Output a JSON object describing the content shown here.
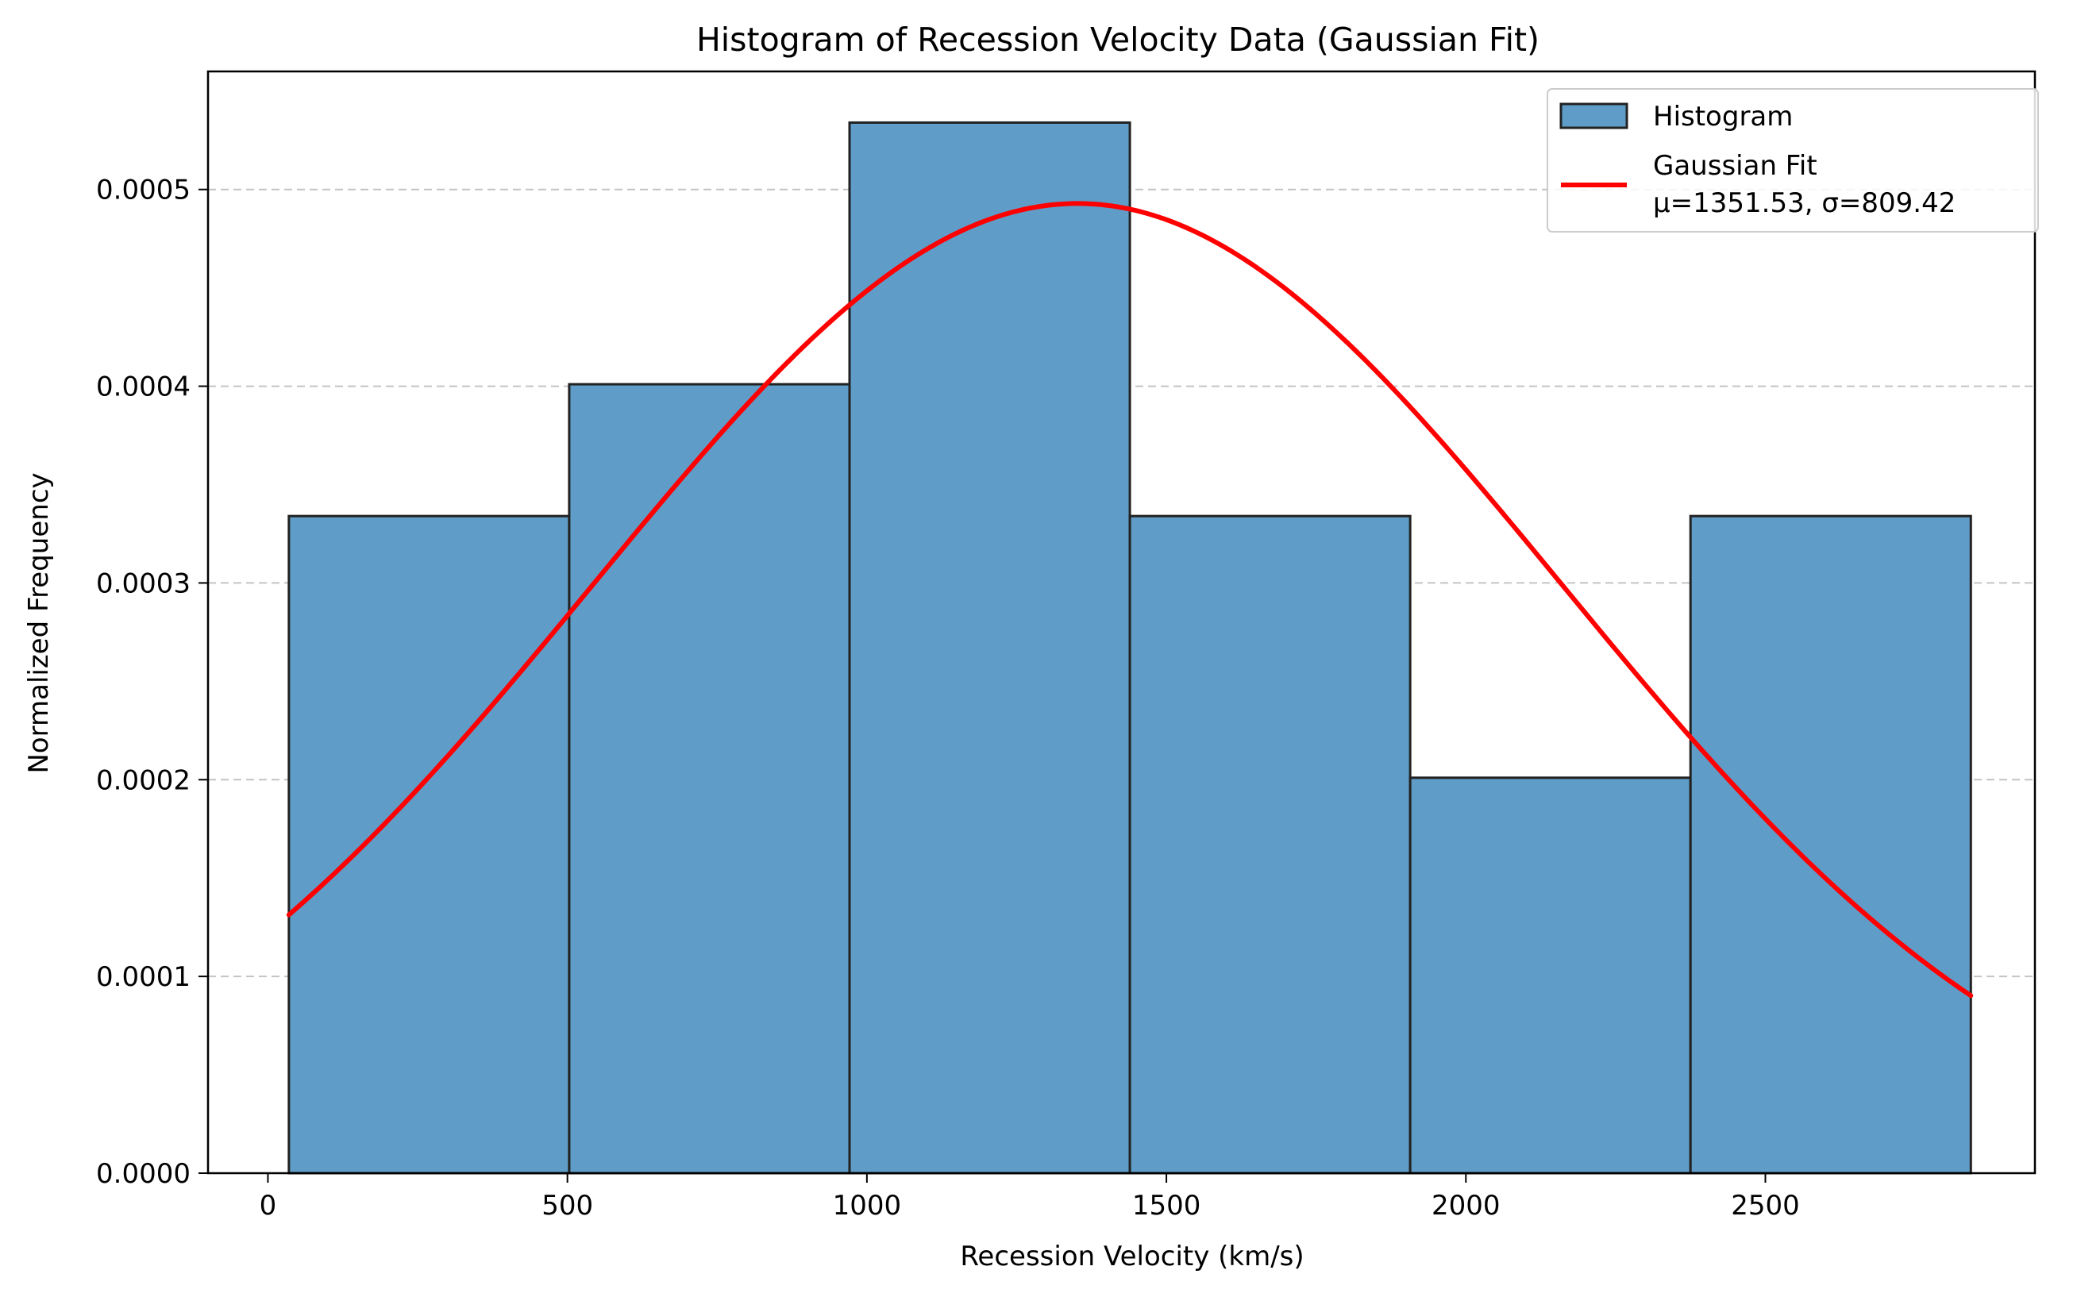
{
  "chart_data": {
    "type": "bar",
    "title": "Histogram of Recession Velocity Data (Gaussian Fit)",
    "xlabel": "Recession Velocity (km/s)",
    "ylabel": "Normalized Frequency",
    "xlim": [
      -100,
      2950
    ],
    "ylim": [
      0,
      0.00056
    ],
    "x_ticks": [
      0,
      500,
      1000,
      1500,
      2000,
      2500
    ],
    "x_tick_labels": [
      "0",
      "500",
      "1000",
      "1500",
      "2000",
      "2500"
    ],
    "y_ticks": [
      0,
      0.0001,
      0.0002,
      0.0003,
      0.0004,
      0.0005
    ],
    "y_tick_labels": [
      "0.0000",
      "0.0001",
      "0.0002",
      "0.0003",
      "0.0004",
      "0.0005"
    ],
    "grid": "y-dashed",
    "legend_position": "top-right",
    "bin_edges": [
      35,
      503,
      971,
      1439,
      1907,
      2375,
      2843
    ],
    "values": [
      0.000334,
      0.000401,
      0.000534,
      0.000334,
      0.000201,
      0.000334
    ],
    "series": [
      {
        "name": "Histogram",
        "kind": "histogram",
        "color": "#5f9dc8",
        "edge_color": "#222222"
      },
      {
        "name": "Gaussian Fit\nμ=1351.53, σ=809.42",
        "kind": "line",
        "color": "#ff0000",
        "mu": 1351.53,
        "sigma": 809.42,
        "x_range": [
          35,
          2843
        ]
      }
    ],
    "legend": {
      "histogram_label": "Histogram",
      "fit_label_line1": "Gaussian Fit",
      "fit_label_line2": "μ=1351.53, σ=809.42"
    }
  }
}
